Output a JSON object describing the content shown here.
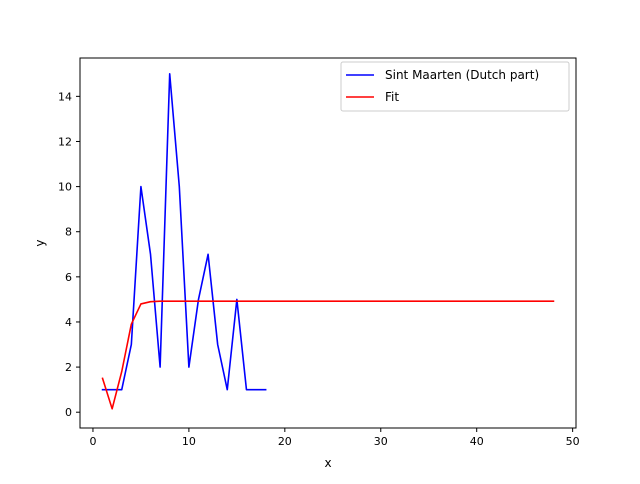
{
  "chart_data": {
    "type": "line",
    "title": "",
    "xlabel": "x",
    "ylabel": "y",
    "xlim": [
      -1.35,
      50.35
    ],
    "ylim": [
      -0.7,
      15.7
    ],
    "xticks": [
      0,
      10,
      20,
      30,
      40,
      50
    ],
    "yticks": [
      0,
      2,
      4,
      6,
      8,
      10,
      12,
      14
    ],
    "grid": false,
    "legend_position": "upper right",
    "series": [
      {
        "name": "Sint Maarten (Dutch part)",
        "color": "#0000ff",
        "x": [
          1,
          2,
          3,
          4,
          5,
          6,
          7,
          8,
          9,
          10,
          11,
          12,
          13,
          14,
          15,
          16,
          17,
          18
        ],
        "y": [
          1,
          1,
          1,
          3,
          10,
          7,
          2,
          15,
          10,
          2,
          5,
          7,
          3,
          1,
          5,
          1,
          1,
          1
        ]
      },
      {
        "name": "Fit",
        "color": "#ff0000",
        "x": [
          1,
          2,
          3,
          4,
          5,
          6,
          7,
          8,
          9,
          10,
          11,
          12,
          13,
          14,
          15,
          16,
          17,
          18,
          19,
          20,
          21,
          22,
          23,
          24,
          25,
          26,
          27,
          28,
          29,
          30,
          31,
          32,
          33,
          34,
          35,
          36,
          37,
          38,
          39,
          40,
          41,
          42,
          43,
          44,
          45,
          46,
          47,
          48
        ],
        "y": [
          1.5,
          0.15,
          1.8,
          3.9,
          4.8,
          4.9,
          4.92,
          4.92,
          4.92,
          4.92,
          4.92,
          4.92,
          4.92,
          4.92,
          4.92,
          4.92,
          4.92,
          4.92,
          4.92,
          4.92,
          4.92,
          4.92,
          4.92,
          4.92,
          4.92,
          4.92,
          4.92,
          4.92,
          4.92,
          4.92,
          4.92,
          4.92,
          4.92,
          4.92,
          4.92,
          4.92,
          4.92,
          4.92,
          4.92,
          4.92,
          4.92,
          4.92,
          4.92,
          4.92,
          4.92,
          4.92,
          4.92,
          4.92
        ]
      }
    ]
  }
}
